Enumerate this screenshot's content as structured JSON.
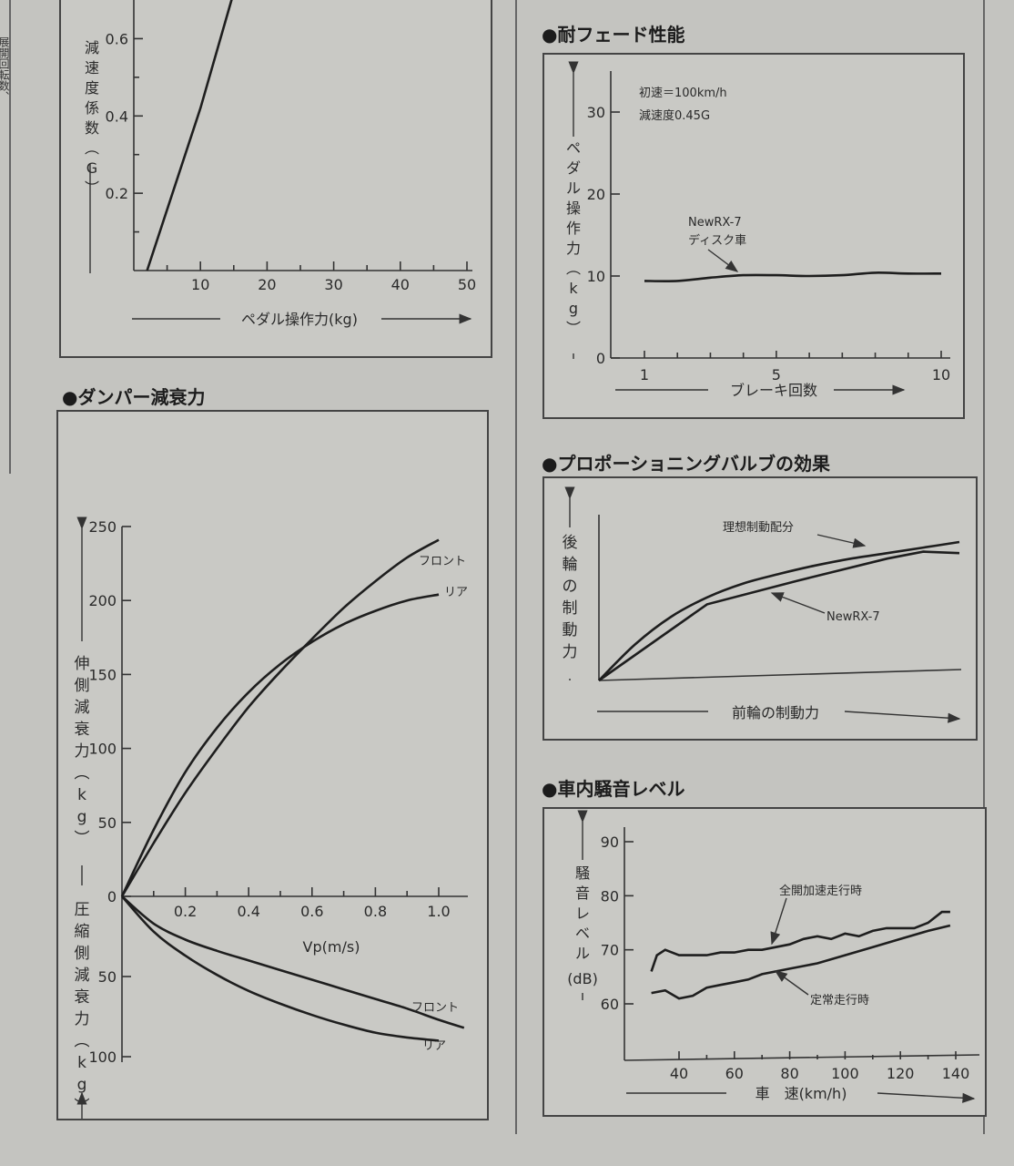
{
  "left_margin_text": "展開回転数、",
  "chart_data": [
    {
      "id": "decel",
      "type": "line",
      "title": "",
      "xlabel": "ペダル操作力(kg)",
      "ylabel": "減速度係数(G)",
      "xlim": [
        0,
        50
      ],
      "ylim": [
        0,
        0.7
      ],
      "x_ticks": [
        "10",
        "20",
        "30",
        "40",
        "50"
      ],
      "y_ticks": [
        "0.2",
        "0.4",
        "0.6"
      ],
      "series": [
        {
          "x": [
            2,
            10,
            15
          ],
          "y": [
            0,
            0.42,
            0.72
          ]
        }
      ]
    },
    {
      "id": "fade",
      "type": "line",
      "title": "●耐フェード性能",
      "xlabel": "ブレーキ回数",
      "ylabel": "ペダル操作力(kg)",
      "xlim": [
        0,
        10
      ],
      "ylim": [
        0,
        35
      ],
      "x_ticks": [
        "1",
        "5",
        "10"
      ],
      "y_ticks": [
        "0",
        "10",
        "20",
        "30"
      ],
      "notes": [
        "初速＝100km/h",
        "減速度0.45G"
      ],
      "series": [
        {
          "name": "NewRX-7 ディスク車",
          "label_lines": [
            "NewRX-7",
            "ディスク車"
          ],
          "x": [
            1,
            2,
            3,
            4,
            5,
            6,
            7,
            8,
            9,
            10
          ],
          "y": [
            9.4,
            9.4,
            9.8,
            10.1,
            10.1,
            10.0,
            10.1,
            10.4,
            10.3,
            10.3
          ]
        }
      ]
    },
    {
      "id": "damper",
      "type": "line",
      "title": "●ダンパー減衰力",
      "xlabel": "Vp(m/s)",
      "ylabel_top": "伸側減衰力(kg)",
      "ylabel_bottom": "圧縮側減衰力(kg)",
      "xlim": [
        0,
        1.1
      ],
      "ylim": [
        -100,
        250
      ],
      "x_ticks": [
        "0.2",
        "0.4",
        "0.6",
        "0.8",
        "1.0"
      ],
      "y_ticks_top": [
        "0",
        "50",
        "100",
        "150",
        "200",
        "250"
      ],
      "y_ticks_bottom": [
        "50",
        "100"
      ],
      "series": [
        {
          "name": "フロント",
          "side": "extension",
          "x": [
            0,
            0.1,
            0.2,
            0.3,
            0.4,
            0.5,
            0.6,
            0.7,
            0.8,
            0.9,
            1.0
          ],
          "y": [
            0,
            36,
            70,
            100,
            128,
            152,
            174,
            195,
            213,
            229,
            241
          ]
        },
        {
          "name": "リア",
          "side": "extension",
          "x": [
            0,
            0.1,
            0.2,
            0.3,
            0.4,
            0.5,
            0.6,
            0.7,
            0.8,
            0.9,
            1.0
          ],
          "y": [
            0,
            45,
            84,
            114,
            138,
            157,
            172,
            184,
            193,
            200,
            204
          ]
        },
        {
          "name": "フロント",
          "side": "compression",
          "x": [
            0,
            0.1,
            0.2,
            0.3,
            0.4,
            0.5,
            0.6,
            0.7,
            0.8,
            0.9,
            1.0,
            1.08
          ],
          "y": [
            0,
            -17,
            -27,
            -34,
            -40,
            -46,
            -52,
            -58,
            -64,
            -70,
            -77,
            -82
          ]
        },
        {
          "name": "リア",
          "side": "compression",
          "x": [
            0,
            0.1,
            0.2,
            0.3,
            0.4,
            0.5,
            0.6,
            0.7,
            0.8,
            0.9,
            1.0
          ],
          "y": [
            0,
            -22,
            -37,
            -49,
            -59,
            -67,
            -74,
            -80,
            -85,
            -88,
            -90
          ]
        }
      ]
    },
    {
      "id": "proportioning",
      "type": "line",
      "title": "●プロポーショニングバルブの効果",
      "xlabel": "前輪の制動力",
      "ylabel": "後輪の制動力",
      "series": [
        {
          "name": "理想制動配分",
          "x": [
            0,
            0.1,
            0.2,
            0.3,
            0.4,
            0.5,
            0.6,
            0.7,
            0.8,
            0.9,
            1.0
          ],
          "y": [
            0,
            0.26,
            0.46,
            0.6,
            0.7,
            0.77,
            0.83,
            0.88,
            0.92,
            0.96,
            1.0
          ]
        },
        {
          "name": "NewRX-7",
          "x": [
            0,
            0.3,
            0.55,
            0.8,
            0.9,
            1.0
          ],
          "y": [
            0,
            0.55,
            0.72,
            0.88,
            0.93,
            0.92
          ]
        }
      ]
    },
    {
      "id": "noise",
      "type": "line",
      "title": "●車内騒音レベル",
      "xlabel": "車　速(km/h)",
      "ylabel": "騒音レベル(dB)",
      "xlim": [
        20,
        150
      ],
      "ylim": [
        50,
        92
      ],
      "x_ticks": [
        "40",
        "60",
        "80",
        "100",
        "120",
        "140"
      ],
      "y_ticks": [
        "60",
        "70",
        "80",
        "90"
      ],
      "series": [
        {
          "name": "全開加速走行時",
          "x": [
            30,
            32,
            35,
            40,
            45,
            50,
            55,
            60,
            65,
            70,
            75,
            80,
            85,
            90,
            95,
            100,
            105,
            110,
            115,
            120,
            125,
            130,
            135,
            138
          ],
          "y": [
            66,
            69,
            70,
            69,
            69,
            69,
            69.5,
            69.5,
            70,
            70,
            70.5,
            71,
            72,
            72.5,
            72,
            73,
            72.5,
            73.5,
            74,
            74,
            74,
            75,
            77,
            77
          ]
        },
        {
          "name": "定常走行時",
          "x": [
            30,
            35,
            40,
            45,
            50,
            55,
            60,
            65,
            70,
            75,
            80,
            90,
            100,
            110,
            120,
            130,
            138
          ],
          "y": [
            62,
            62.5,
            61,
            61.5,
            63,
            63.5,
            64,
            64.5,
            65.5,
            66,
            66.5,
            67.5,
            69,
            70.5,
            72,
            73.5,
            74.5
          ]
        }
      ]
    }
  ]
}
